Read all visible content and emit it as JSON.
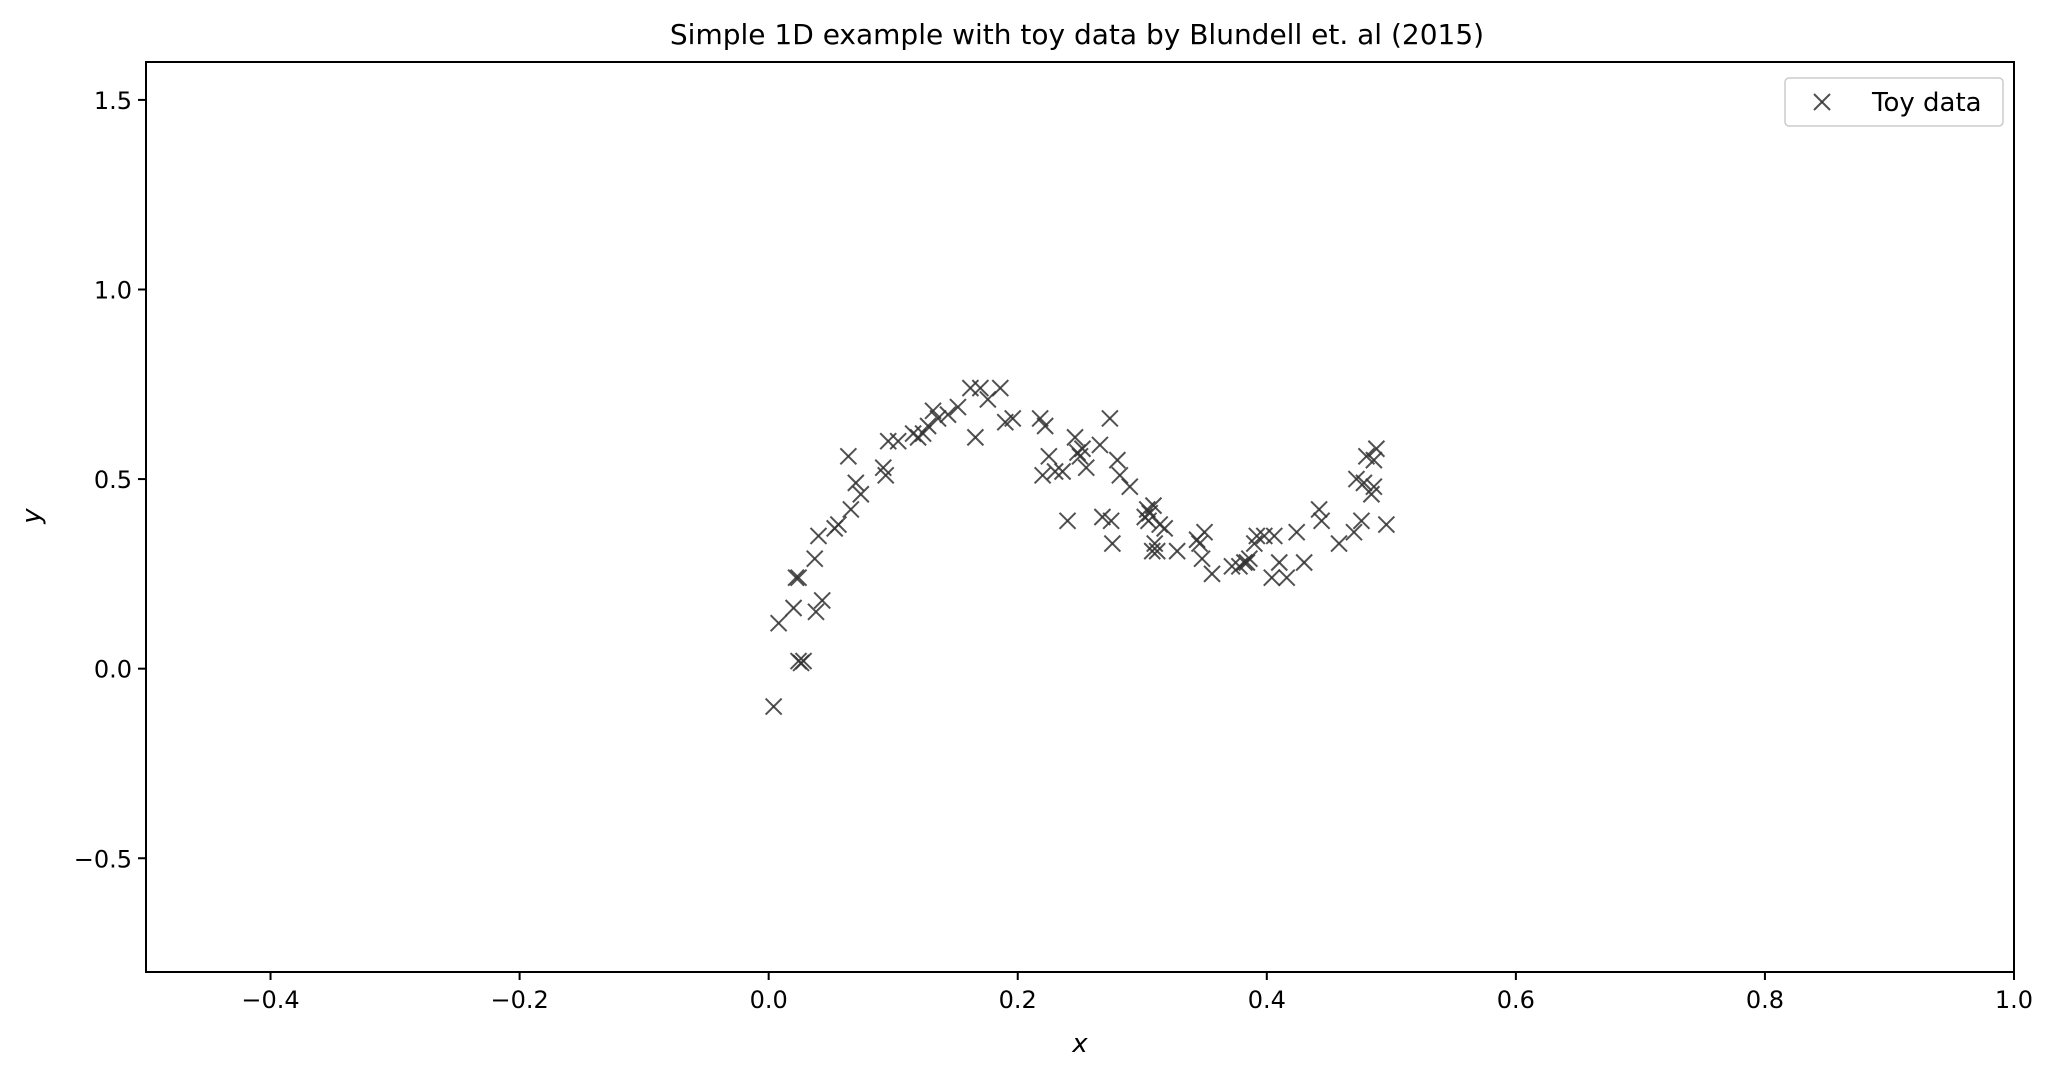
{
  "chart_data": {
    "type": "scatter",
    "title": "Simple 1D example with toy data by Blundell et. al (2015)",
    "xlabel": "x",
    "ylabel": "y",
    "xlim": [
      -0.5,
      1.0
    ],
    "ylim": [
      -0.8,
      1.6
    ],
    "xticks": [
      -0.4,
      -0.2,
      0.0,
      0.2,
      0.4,
      0.6,
      0.8,
      1.0
    ],
    "xtick_labels": [
      "−0.4",
      "−0.2",
      "0.0",
      "0.2",
      "0.4",
      "0.6",
      "0.8",
      "1.0"
    ],
    "yticks": [
      -0.5,
      0.0,
      0.5,
      1.0,
      1.5
    ],
    "ytick_labels": [
      "−0.5",
      "0.0",
      "0.5",
      "1.0",
      "1.5"
    ],
    "grid": false,
    "legend_position": "upper-right",
    "series": [
      {
        "name": "Toy data",
        "marker": "x",
        "color": "#333333",
        "points": [
          [
            0.004,
            -0.1
          ],
          [
            0.008,
            0.12
          ],
          [
            0.02,
            0.16
          ],
          [
            0.022,
            0.24
          ],
          [
            0.024,
            0.24
          ],
          [
            0.024,
            0.02
          ],
          [
            0.026,
            0.015
          ],
          [
            0.028,
            0.02
          ],
          [
            0.037,
            0.29
          ],
          [
            0.038,
            0.15
          ],
          [
            0.04,
            0.35
          ],
          [
            0.043,
            0.18
          ],
          [
            0.053,
            0.37
          ],
          [
            0.056,
            0.38
          ],
          [
            0.064,
            0.56
          ],
          [
            0.066,
            0.42
          ],
          [
            0.07,
            0.49
          ],
          [
            0.074,
            0.46
          ],
          [
            0.092,
            0.53
          ],
          [
            0.094,
            0.51
          ],
          [
            0.096,
            0.6
          ],
          [
            0.104,
            0.6
          ],
          [
            0.116,
            0.62
          ],
          [
            0.12,
            0.61
          ],
          [
            0.124,
            0.62
          ],
          [
            0.128,
            0.64
          ],
          [
            0.132,
            0.68
          ],
          [
            0.136,
            0.66
          ],
          [
            0.144,
            0.67
          ],
          [
            0.152,
            0.69
          ],
          [
            0.162,
            0.74
          ],
          [
            0.166,
            0.61
          ],
          [
            0.17,
            0.74
          ],
          [
            0.176,
            0.71
          ],
          [
            0.186,
            0.74
          ],
          [
            0.19,
            0.65
          ],
          [
            0.196,
            0.66
          ],
          [
            0.218,
            0.66
          ],
          [
            0.22,
            0.51
          ],
          [
            0.222,
            0.64
          ],
          [
            0.225,
            0.56
          ],
          [
            0.23,
            0.52
          ],
          [
            0.236,
            0.52
          ],
          [
            0.24,
            0.39
          ],
          [
            0.246,
            0.61
          ],
          [
            0.248,
            0.57
          ],
          [
            0.25,
            0.56
          ],
          [
            0.252,
            0.58
          ],
          [
            0.255,
            0.53
          ],
          [
            0.266,
            0.59
          ],
          [
            0.268,
            0.4
          ],
          [
            0.274,
            0.66
          ],
          [
            0.275,
            0.39
          ],
          [
            0.276,
            0.33
          ],
          [
            0.28,
            0.55
          ],
          [
            0.282,
            0.51
          ],
          [
            0.29,
            0.48
          ],
          [
            0.302,
            0.4
          ],
          [
            0.304,
            0.42
          ],
          [
            0.305,
            0.39
          ],
          [
            0.306,
            0.41
          ],
          [
            0.308,
            0.31
          ],
          [
            0.309,
            0.43
          ],
          [
            0.31,
            0.33
          ],
          [
            0.312,
            0.31
          ],
          [
            0.314,
            0.38
          ],
          [
            0.318,
            0.37
          ],
          [
            0.328,
            0.31
          ],
          [
            0.344,
            0.34
          ],
          [
            0.346,
            0.33
          ],
          [
            0.348,
            0.29
          ],
          [
            0.35,
            0.36
          ],
          [
            0.356,
            0.25
          ],
          [
            0.372,
            0.27
          ],
          [
            0.378,
            0.27
          ],
          [
            0.382,
            0.28
          ],
          [
            0.384,
            0.28
          ],
          [
            0.386,
            0.29
          ],
          [
            0.39,
            0.33
          ],
          [
            0.392,
            0.35
          ],
          [
            0.398,
            0.35
          ],
          [
            0.404,
            0.24
          ],
          [
            0.406,
            0.35
          ],
          [
            0.41,
            0.28
          ],
          [
            0.416,
            0.24
          ],
          [
            0.424,
            0.36
          ],
          [
            0.43,
            0.28
          ],
          [
            0.442,
            0.42
          ],
          [
            0.444,
            0.39
          ],
          [
            0.458,
            0.33
          ],
          [
            0.47,
            0.36
          ],
          [
            0.472,
            0.5
          ],
          [
            0.476,
            0.39
          ],
          [
            0.478,
            0.49
          ],
          [
            0.48,
            0.56
          ],
          [
            0.484,
            0.46
          ],
          [
            0.486,
            0.48
          ],
          [
            0.486,
            0.55
          ],
          [
            0.488,
            0.58
          ],
          [
            0.496,
            0.38
          ]
        ]
      }
    ]
  }
}
